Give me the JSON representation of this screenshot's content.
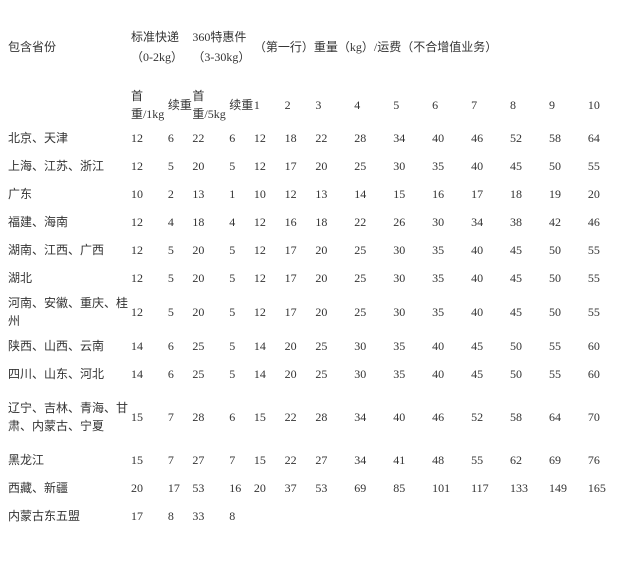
{
  "headers": {
    "province": "包含省份",
    "std": "标准快递（0-2kg）",
    "special": "360特惠件（3-30kg）",
    "weightFees": "（第一行）重量（kg）/运费（不合增值业务）",
    "sub": {
      "firstWeight1": "首重/1kg",
      "contWeight": "续重",
      "firstWeight5": "首重/5kg",
      "w1": "1",
      "w2": "2",
      "w3": "3",
      "w4": "4",
      "w5": "5",
      "w6": "6",
      "w7": "7",
      "w8": "8",
      "w9": "9",
      "w10": "10"
    }
  },
  "rows": [
    {
      "province": "北京、天津",
      "a1": "12",
      "a2": "6",
      "b1": "22",
      "b2": "6",
      "v": [
        "12",
        "18",
        "22",
        "28",
        "34",
        "40",
        "46",
        "52",
        "58",
        "64"
      ]
    },
    {
      "province": "上海、江苏、浙江",
      "a1": "12",
      "a2": "5",
      "b1": "20",
      "b2": "5",
      "v": [
        "12",
        "17",
        "20",
        "25",
        "30",
        "35",
        "40",
        "45",
        "50",
        "55"
      ]
    },
    {
      "province": "广东",
      "a1": "10",
      "a2": "2",
      "b1": "13",
      "b2": "1",
      "v": [
        "10",
        "12",
        "13",
        "14",
        "15",
        "16",
        "17",
        "18",
        "19",
        "20"
      ]
    },
    {
      "province": "福建、海南",
      "a1": "12",
      "a2": "4",
      "b1": "18",
      "b2": "4",
      "v": [
        "12",
        "16",
        "18",
        "22",
        "26",
        "30",
        "34",
        "38",
        "42",
        "46"
      ]
    },
    {
      "province": "湖南、江西、广西",
      "a1": "12",
      "a2": "5",
      "b1": "20",
      "b2": "5",
      "v": [
        "12",
        "17",
        "20",
        "25",
        "30",
        "35",
        "40",
        "45",
        "50",
        "55"
      ]
    },
    {
      "province": "湖北",
      "a1": "12",
      "a2": "5",
      "b1": "20",
      "b2": "5",
      "v": [
        "12",
        "17",
        "20",
        "25",
        "30",
        "35",
        "40",
        "45",
        "50",
        "55"
      ]
    },
    {
      "province": "河南、安徽、重庆、桂州",
      "a1": "12",
      "a2": "5",
      "b1": "20",
      "b2": "5",
      "v": [
        "12",
        "17",
        "20",
        "25",
        "30",
        "35",
        "40",
        "45",
        "50",
        "55"
      ],
      "tall": true
    },
    {
      "province": "陕西、山西、云南",
      "a1": "14",
      "a2": "6",
      "b1": "25",
      "b2": "5",
      "v": [
        "14",
        "20",
        "25",
        "30",
        "35",
        "40",
        "45",
        "50",
        "55",
        "60"
      ]
    },
    {
      "province": "四川、山东、河北",
      "a1": "14",
      "a2": "6",
      "b1": "25",
      "b2": "5",
      "v": [
        "14",
        "20",
        "25",
        "30",
        "35",
        "40",
        "45",
        "50",
        "55",
        "60"
      ]
    },
    {
      "province": "辽宁、吉林、青海、甘肃、内蒙古、宁夏",
      "a1": "15",
      "a2": "7",
      "b1": "28",
      "b2": "6",
      "v": [
        "15",
        "22",
        "28",
        "34",
        "40",
        "46",
        "52",
        "58",
        "64",
        "70"
      ],
      "tall3": true
    },
    {
      "province": "黑龙江",
      "a1": "15",
      "a2": "7",
      "b1": "27",
      "b2": "7",
      "v": [
        "15",
        "22",
        "27",
        "34",
        "41",
        "48",
        "55",
        "62",
        "69",
        "76"
      ]
    },
    {
      "province": "西藏、新疆",
      "a1": "20",
      "a2": "17",
      "b1": "53",
      "b2": "16",
      "v": [
        "20",
        "37",
        "53",
        "69",
        "85",
        "101",
        "117",
        "133",
        "149",
        "165"
      ]
    },
    {
      "province": "内蒙古东五盟",
      "a1": "17",
      "a2": "8",
      "b1": "33",
      "b2": "8",
      "v": [
        "",
        "",
        "",
        "",
        "",
        "",
        "",
        "",
        "",
        ""
      ]
    }
  ]
}
